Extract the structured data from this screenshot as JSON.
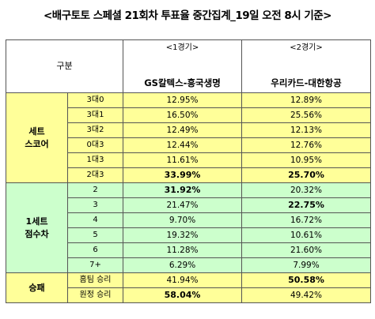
{
  "title": "<배구토토 스페셜 21회차 투표율 중간집계_19일 오전 8시 기준>",
  "header": {
    "gubun": "구분",
    "games": [
      {
        "num": "<1경기>",
        "team": "GS칼텍스-흥국생명"
      },
      {
        "num": "<2경기>",
        "team": "우리카드-대한항공"
      }
    ]
  },
  "groups": [
    {
      "name_lines": [
        "세트",
        "스코어"
      ],
      "color": "#ffff99",
      "rows": [
        {
          "label": "3대0",
          "g1": "12.95%",
          "g2": "12.89%",
          "g1_bold": false,
          "g2_bold": false
        },
        {
          "label": "3대1",
          "g1": "16.50%",
          "g2": "25.56%",
          "g1_bold": false,
          "g2_bold": false
        },
        {
          "label": "3대2",
          "g1": "12.49%",
          "g2": "12.13%",
          "g1_bold": false,
          "g2_bold": false
        },
        {
          "label": "0대3",
          "g1": "12.44%",
          "g2": "12.76%",
          "g1_bold": false,
          "g2_bold": false
        },
        {
          "label": "1대3",
          "g1": "11.61%",
          "g2": "10.95%",
          "g1_bold": false,
          "g2_bold": false
        },
        {
          "label": "2대3",
          "g1": "33.99%",
          "g2": "25.70%",
          "g1_bold": true,
          "g2_bold": true
        }
      ]
    },
    {
      "name_lines": [
        "1세트",
        "점수차"
      ],
      "color": "#ccffcc",
      "rows": [
        {
          "label": "2",
          "g1": "31.92%",
          "g2": "20.32%",
          "g1_bold": true,
          "g2_bold": false
        },
        {
          "label": "3",
          "g1": "21.47%",
          "g2": "22.75%",
          "g1_bold": false,
          "g2_bold": true
        },
        {
          "label": "4",
          "g1": "9.70%",
          "g2": "16.72%",
          "g1_bold": false,
          "g2_bold": false
        },
        {
          "label": "5",
          "g1": "19.32%",
          "g2": "10.61%",
          "g1_bold": false,
          "g2_bold": false
        },
        {
          "label": "6",
          "g1": "11.28%",
          "g2": "21.60%",
          "g1_bold": false,
          "g2_bold": false
        },
        {
          "label": "7+",
          "g1": "6.29%",
          "g2": "7.99%",
          "g1_bold": false,
          "g2_bold": false
        }
      ]
    },
    {
      "name_lines": [
        "승패"
      ],
      "color": "#ffff99",
      "rows": [
        {
          "label": "홈팀 승리",
          "g1": "41.94%",
          "g2": "50.58%",
          "g1_bold": false,
          "g2_bold": true
        },
        {
          "label": "원정 승리",
          "g1": "58.04%",
          "g2": "49.42%",
          "g1_bold": true,
          "g2_bold": false
        }
      ]
    }
  ]
}
